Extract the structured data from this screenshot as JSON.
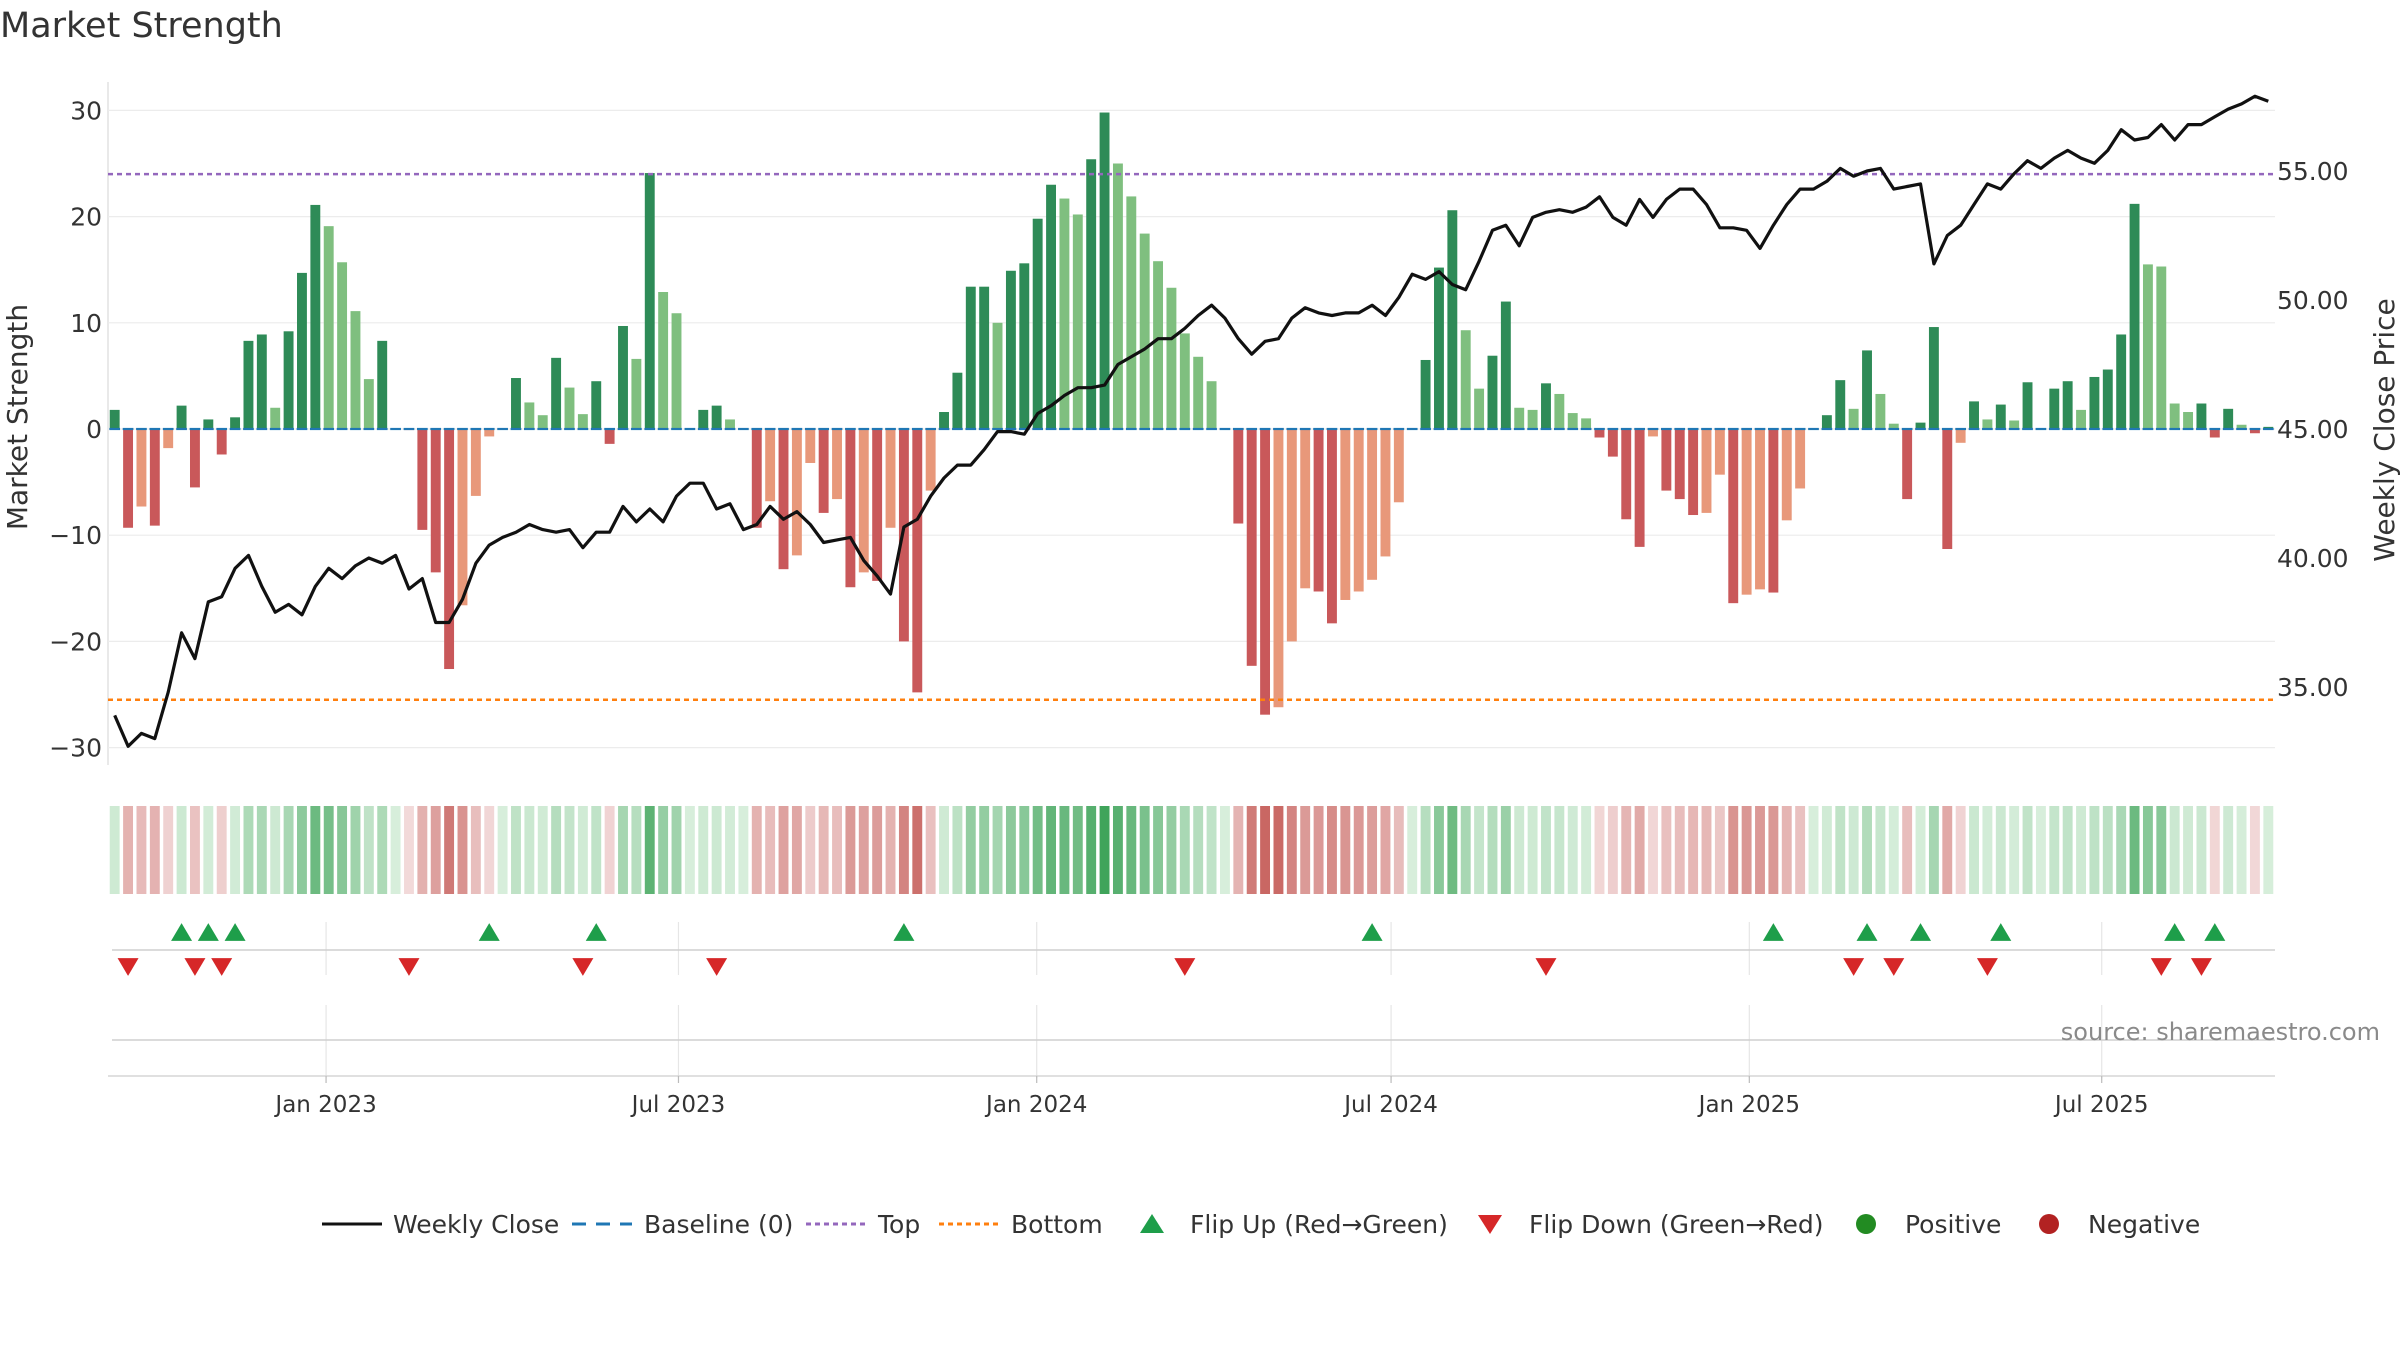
{
  "chart_data": {
    "type": "bar",
    "title": "Market Strength",
    "ylabel": "Market Strength",
    "y2label": "Weekly Close Price",
    "ylim": [
      -32,
      32
    ],
    "y2lim": [
      32.5,
      57.8
    ],
    "yticks": [
      30,
      20,
      10,
      0,
      -10,
      -20,
      -30
    ],
    "ytick_labels": [
      "30",
      "20",
      "10",
      "0",
      "−10",
      "−20",
      "−30"
    ],
    "y2ticks": [
      55,
      50,
      45,
      40,
      35
    ],
    "y2tick_labels": [
      "55.00",
      "50.00",
      "45.00",
      "40.00",
      "35.00"
    ],
    "top_line": 24,
    "bottom_line": -25.5,
    "xaxis": {
      "start_date": "2022-09-11",
      "end_date": "2025-09-28",
      "tick_labels": [
        "Jan 2023",
        "Jul 2023",
        "Jan 2024",
        "Jul 2024",
        "Jan 2025",
        "Jul 2025"
      ],
      "tick_dates": [
        "2023-01-01",
        "2023-07-01",
        "2024-01-01",
        "2024-07-01",
        "2025-01-01",
        "2025-07-01"
      ]
    },
    "strength": [
      1.8,
      -9.3,
      -7.3,
      -9.1,
      -1.8,
      2.2,
      -5.5,
      0.9,
      -2.4,
      1.1,
      8.3,
      8.9,
      2,
      9.2,
      14.7,
      21.1,
      19.1,
      15.7,
      11.1,
      4.7,
      8.3,
      0,
      -0.1,
      -9.5,
      -13.5,
      -22.6,
      -16.6,
      -6.3,
      -0.7,
      0,
      4.8,
      2.5,
      1.3,
      6.7,
      3.9,
      1.4,
      4.5,
      -1.4,
      9.7,
      6.6,
      24.1,
      12.9,
      10.9,
      0,
      1.8,
      2.2,
      0.9,
      0,
      -9.3,
      -6.8,
      -13.2,
      -11.9,
      -3.2,
      -7.9,
      -6.6,
      -14.9,
      -13.5,
      -14.3,
      -9.3,
      -20,
      -24.8,
      -5.8,
      1.6,
      5.3,
      13.4,
      13.4,
      10,
      14.9,
      15.6,
      19.8,
      23,
      21.7,
      20.2,
      25.4,
      29.8,
      25,
      21.9,
      18.4,
      15.8,
      13.3,
      9,
      6.8,
      4.5,
      0,
      -8.9,
      -22.3,
      -26.9,
      -26.2,
      -20,
      -15,
      -15.3,
      -18.3,
      -16.1,
      -15.3,
      -14.2,
      -12,
      -6.9,
      0,
      6.5,
      15.2,
      20.6,
      9.3,
      3.8,
      6.9,
      12,
      2,
      1.8,
      4.3,
      3.3,
      1.5,
      1,
      -0.8,
      -2.6,
      -8.5,
      -11.1,
      -0.7,
      -5.8,
      -6.6,
      -8.1,
      -7.9,
      -4.3,
      -16.4,
      -15.6,
      -15.1,
      -15.4,
      -8.6,
      -5.6,
      0,
      1.3,
      4.6,
      1.9,
      7.4,
      3.3,
      0.5,
      -6.6,
      0.6,
      9.6,
      -11.3,
      -1.3,
      2.6,
      0.9,
      2.3,
      0.8,
      4.4,
      0,
      3.8,
      4.5,
      1.8,
      4.9,
      5.6,
      8.9,
      21.2,
      15.5,
      15.3,
      2.4,
      1.6,
      2.4,
      -0.8,
      1.9,
      0.4,
      -0.4,
      0.2
    ],
    "close": [
      33.9,
      32.7,
      33.2,
      33,
      34.8,
      37.1,
      36.1,
      38.3,
      38.5,
      39.6,
      40.1,
      38.9,
      37.9,
      38.2,
      37.8,
      38.9,
      39.6,
      39.2,
      39.7,
      40,
      39.8,
      40.1,
      38.8,
      39.2,
      37.5,
      37.5,
      38.4,
      39.8,
      40.5,
      40.8,
      41,
      41.3,
      41.1,
      41,
      41.1,
      40.4,
      41,
      41,
      42,
      41.4,
      41.9,
      41.4,
      42.4,
      42.9,
      42.9,
      41.9,
      42.1,
      41.1,
      41.3,
      42,
      41.5,
      41.8,
      41.3,
      40.6,
      40.7,
      40.8,
      39.9,
      39.3,
      38.6,
      41.2,
      41.5,
      42.4,
      43.1,
      43.6,
      43.6,
      44.2,
      44.9,
      44.9,
      44.8,
      45.6,
      45.9,
      46.3,
      46.6,
      46.6,
      46.7,
      47.5,
      47.8,
      48.1,
      48.5,
      48.5,
      48.9,
      49.4,
      49.8,
      49.3,
      48.5,
      47.9,
      48.4,
      48.5,
      49.3,
      49.7,
      49.5,
      49.4,
      49.5,
      49.5,
      49.8,
      49.4,
      50.1,
      51,
      50.8,
      51.1,
      50.6,
      50.4,
      51.5,
      52.7,
      52.9,
      52.1,
      53.2,
      53.4,
      53.5,
      53.4,
      53.6,
      54,
      53.2,
      52.9,
      53.9,
      53.2,
      53.9,
      54.3,
      54.3,
      53.7,
      52.8,
      52.8,
      52.7,
      52,
      52.9,
      53.7,
      54.3,
      54.3,
      54.6,
      55.1,
      54.8,
      55,
      55.1,
      54.3,
      54.4,
      54.5,
      51.4,
      52.5,
      52.9,
      53.7,
      54.5,
      54.3,
      54.9,
      55.4,
      55.1,
      55.5,
      55.8,
      55.5,
      55.3,
      55.8,
      56.6,
      56.2,
      56.3,
      56.8,
      56.2,
      56.8,
      56.8,
      57.1,
      57.4,
      57.6,
      57.9,
      57.7
    ],
    "flip_up_indices": [
      5,
      7,
      9,
      28,
      36,
      59,
      94,
      124,
      131,
      135,
      141,
      154,
      157
    ],
    "flip_down_indices": [
      1,
      6,
      8,
      22,
      35,
      45,
      80,
      107,
      130,
      133,
      140,
      153,
      156
    ],
    "legend": [
      "Weekly Close",
      "Baseline (0)",
      "Top",
      "Bottom",
      "Flip Up (Red→Green)",
      "Flip Down (Green→Red)",
      "Positive",
      "Negative"
    ],
    "legend_placement": "bottom-center",
    "source_note": "source: sharemaestro.com",
    "colors": {
      "pos_strong": "#2e8b57",
      "pos_weak": "#7fbf7f",
      "neg_strong": "#c9585a",
      "neg_weak": "#e8987a",
      "close_line": "#111111",
      "baseline": "#1f77b4",
      "top": "#9467bd",
      "bottom": "#ff7f0e",
      "flip_up": "#1e9e4a",
      "flip_down": "#d62728",
      "positive_dot": "#228b22",
      "negative_dot": "#b22222"
    }
  }
}
